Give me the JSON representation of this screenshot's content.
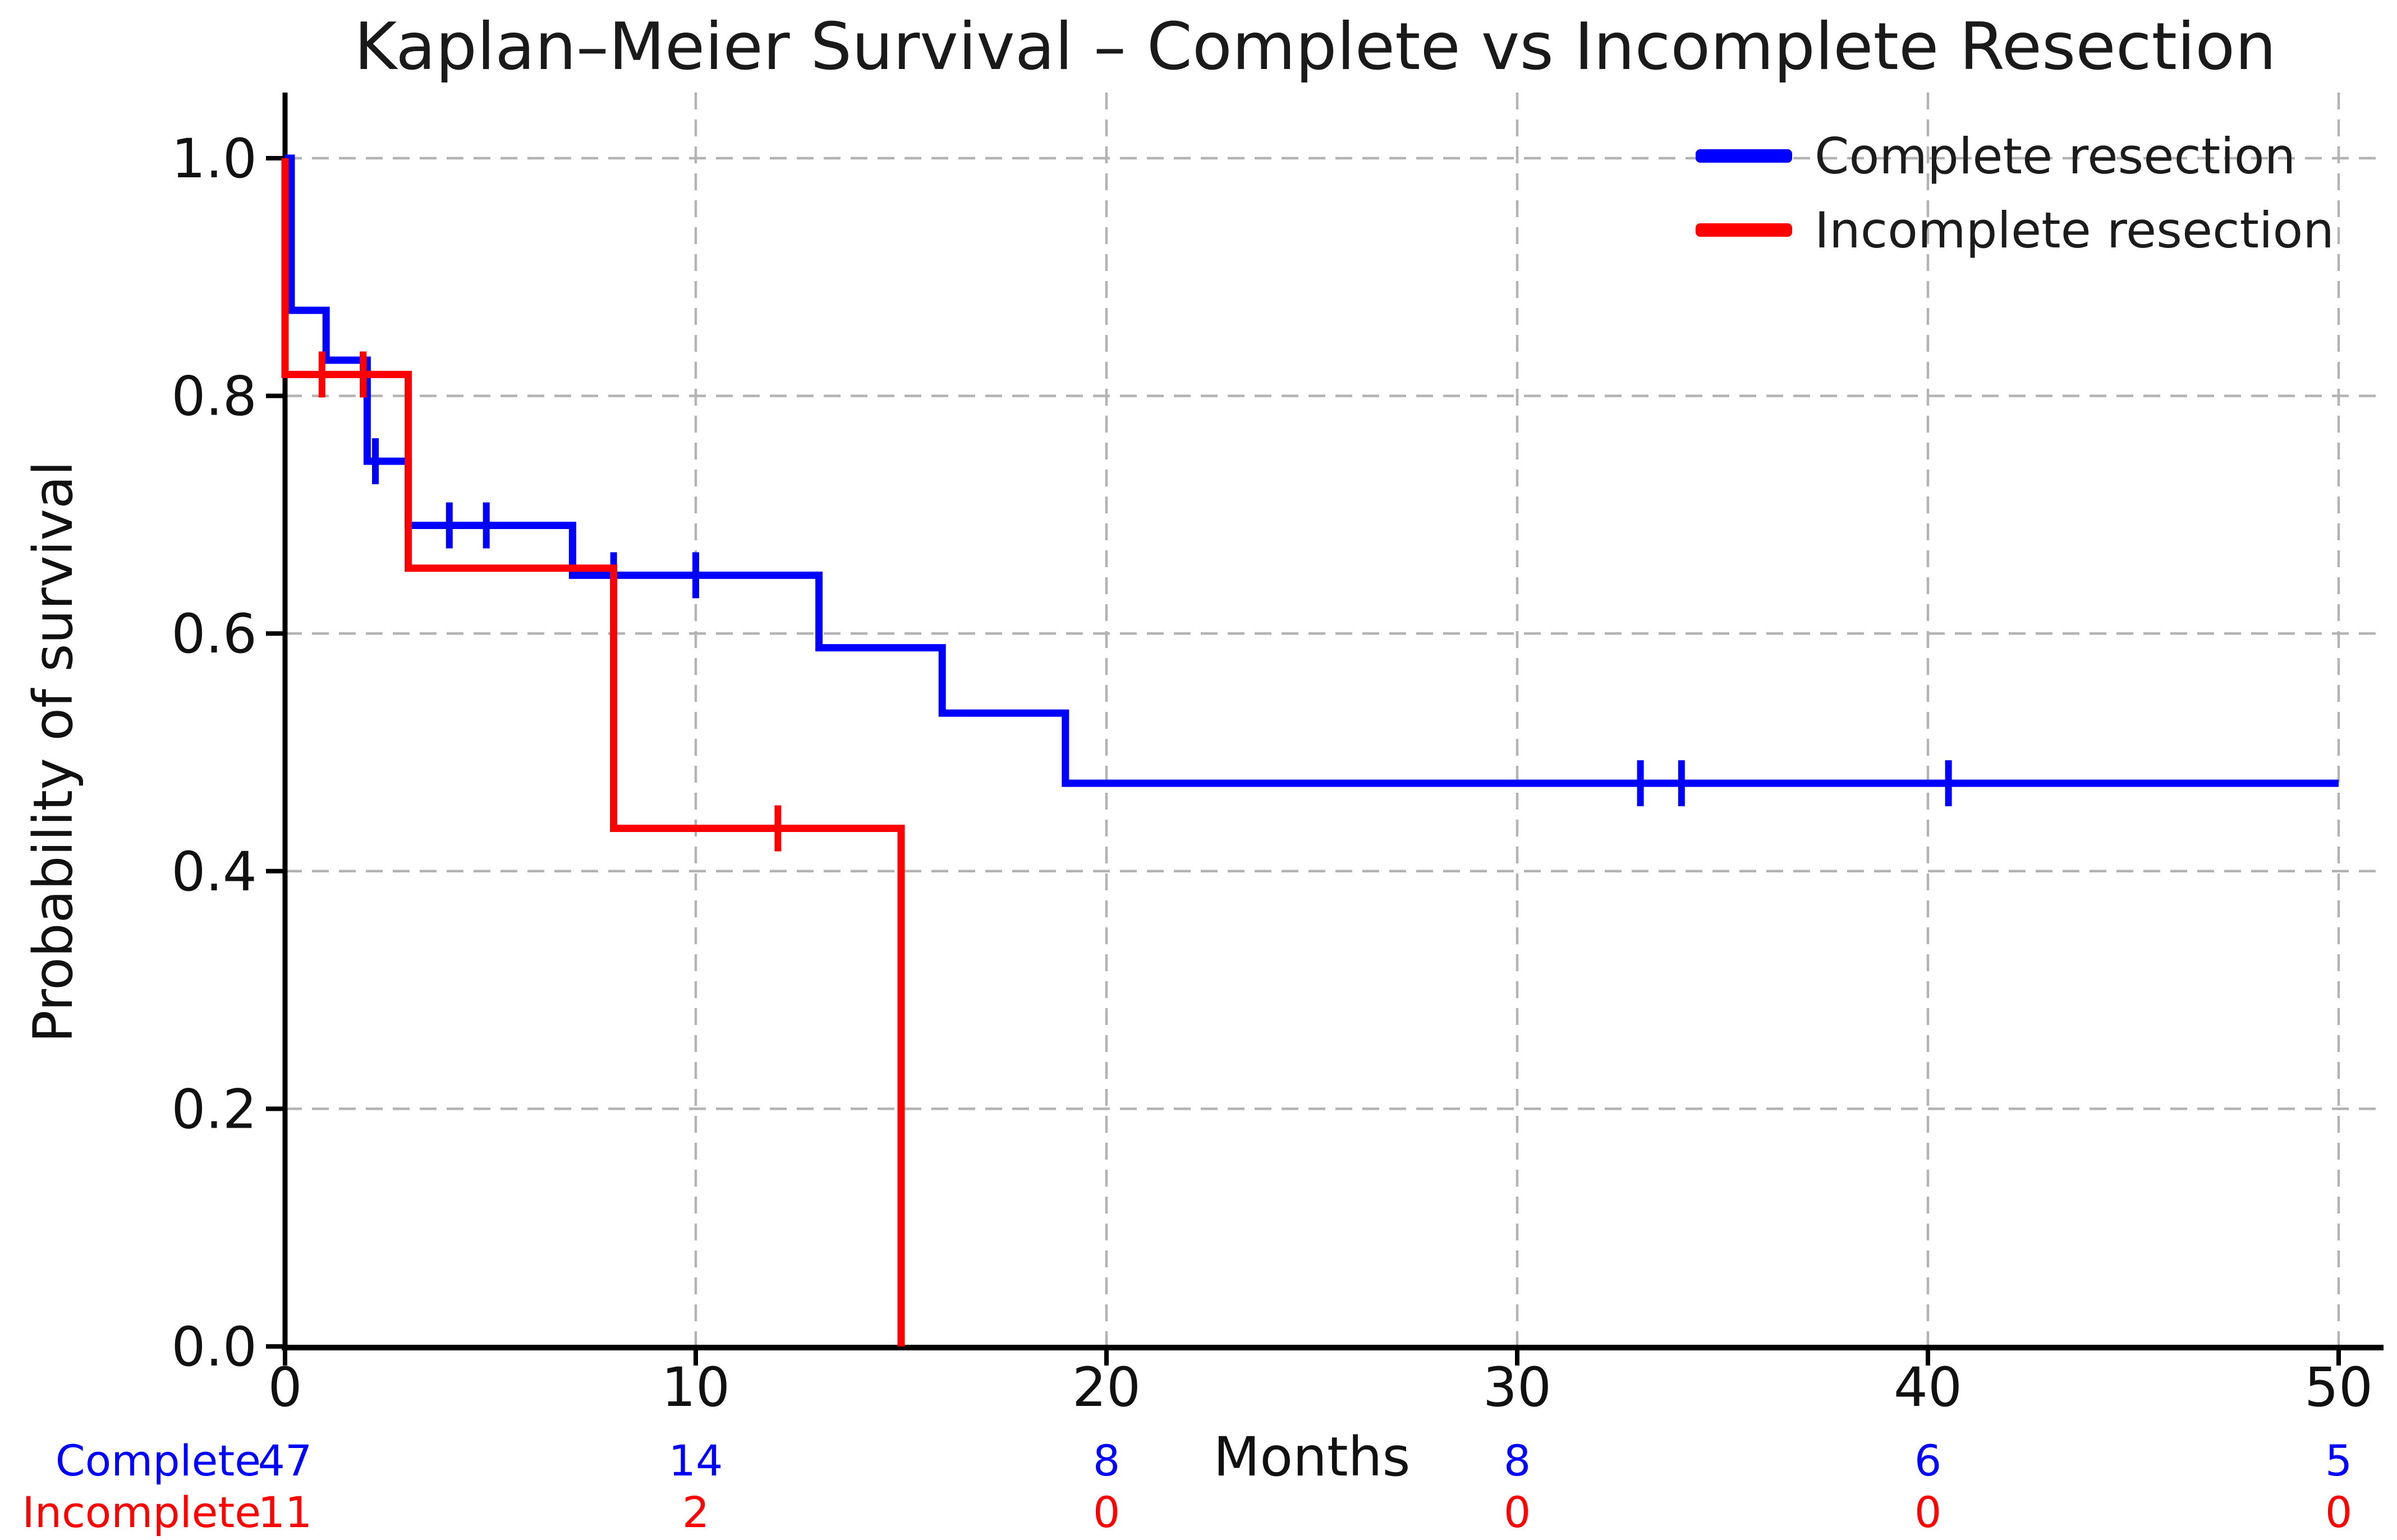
{
  "chart_data": {
    "type": "line",
    "chart_kind": "kaplan-meier-step-plot",
    "title": "Kaplan–Meier Survival – Complete vs Incomplete Resection",
    "xlabel": "Months",
    "ylabel": "Probability of survival",
    "xlim": [
      0,
      50.8
    ],
    "ylim": [
      0,
      1.05
    ],
    "xticks": [
      0,
      10,
      20,
      30,
      40,
      50
    ],
    "yticks": [
      0.0,
      0.2,
      0.4,
      0.6,
      0.8,
      1.0
    ],
    "grid": true,
    "grid_style": "dashed",
    "legend_position": "upper right",
    "series": [
      {
        "name": "Complete resection",
        "color": "#0000ff",
        "steps": [
          [
            0,
            1.0
          ],
          [
            0.15,
            0.872
          ],
          [
            1,
            0.83
          ],
          [
            2,
            0.745
          ],
          [
            3,
            0.691
          ],
          [
            7,
            0.649
          ],
          [
            13,
            0.588
          ],
          [
            16,
            0.533
          ],
          [
            19,
            0.474
          ],
          [
            50,
            0.474
          ]
        ],
        "censor_marks": [
          [
            2.2,
            0.745
          ],
          [
            4,
            0.691
          ],
          [
            4.9,
            0.691
          ],
          [
            8,
            0.649
          ],
          [
            10,
            0.649
          ],
          [
            33,
            0.474
          ],
          [
            34,
            0.474
          ],
          [
            40.5,
            0.474
          ]
        ]
      },
      {
        "name": "Incomplete resection",
        "color": "#ff0000",
        "steps": [
          [
            0,
            1.0
          ],
          [
            0,
            0.818
          ],
          [
            3,
            0.655
          ],
          [
            8,
            0.436
          ],
          [
            15,
            0.0
          ]
        ],
        "censor_marks": [
          [
            0.9,
            0.818
          ],
          [
            1.9,
            0.818
          ],
          [
            12,
            0.436
          ]
        ]
      }
    ],
    "risk_table": {
      "time_points": [
        0,
        10,
        20,
        30,
        40,
        50
      ],
      "rows": [
        {
          "label": "Complete",
          "color": "#0000ff",
          "values": [
            "47",
            "14",
            "8",
            "8",
            "6",
            "5"
          ]
        },
        {
          "label": "Incomplete",
          "color": "#ff0000",
          "values": [
            "11",
            "2",
            "0",
            "0",
            "0",
            "0"
          ]
        }
      ]
    }
  },
  "colors": {
    "complete": "#0000ff",
    "incomplete": "#ff0000",
    "grid": "#b3b3b3",
    "axis": "#000000",
    "text": "#111111"
  }
}
